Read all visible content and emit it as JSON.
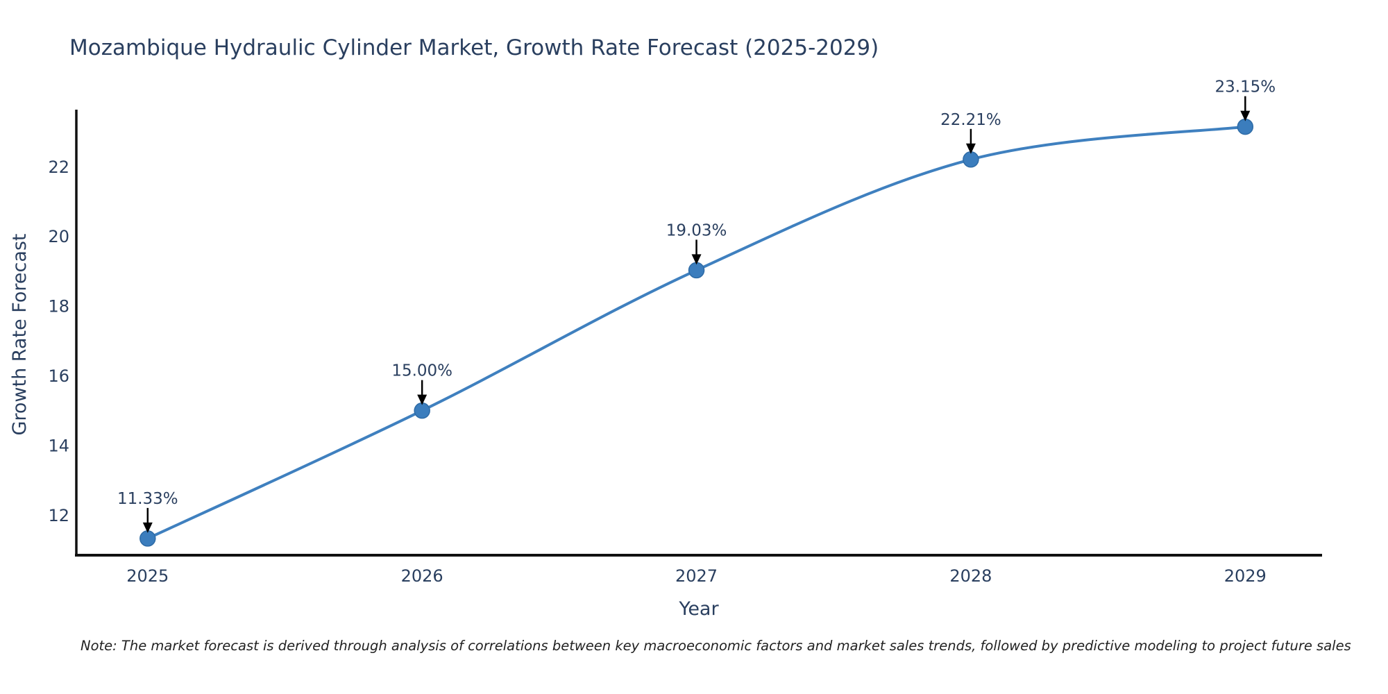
{
  "chart_data": {
    "type": "line",
    "title": "Mozambique Hydraulic Cylinder Market, Growth Rate Forecast (2025-2029)",
    "xlabel": "Year",
    "ylabel": "Growth Rate Forecast",
    "x": [
      2025,
      2026,
      2027,
      2028,
      2029
    ],
    "values": [
      11.33,
      15.0,
      19.03,
      22.21,
      23.15
    ],
    "point_labels": [
      "11.33%",
      "15.00%",
      "19.03%",
      "22.21%",
      "23.15%"
    ],
    "yticks": [
      12,
      14,
      16,
      18,
      20,
      22
    ],
    "ylim": [
      10.85,
      23.6
    ],
    "xlim": [
      2024.74,
      2029.28
    ],
    "line_shape": "spline",
    "grid": false,
    "legend": "none",
    "marker_symbol": "circle",
    "note": "Note: The market forecast is derived through analysis of correlations between key macroeconomic factors and market sales trends, followed by predictive modeling to project future sales",
    "colors": {
      "line": "#3f80bf",
      "marker": "#3b7dbd",
      "marker_edge": "#2e6ba6",
      "axis_line": "#111111",
      "chart_text": "#2a3f5f",
      "annotation_text": "#2a3f5f",
      "annotation_arrow": "#000000",
      "background": "#ffffff"
    }
  }
}
